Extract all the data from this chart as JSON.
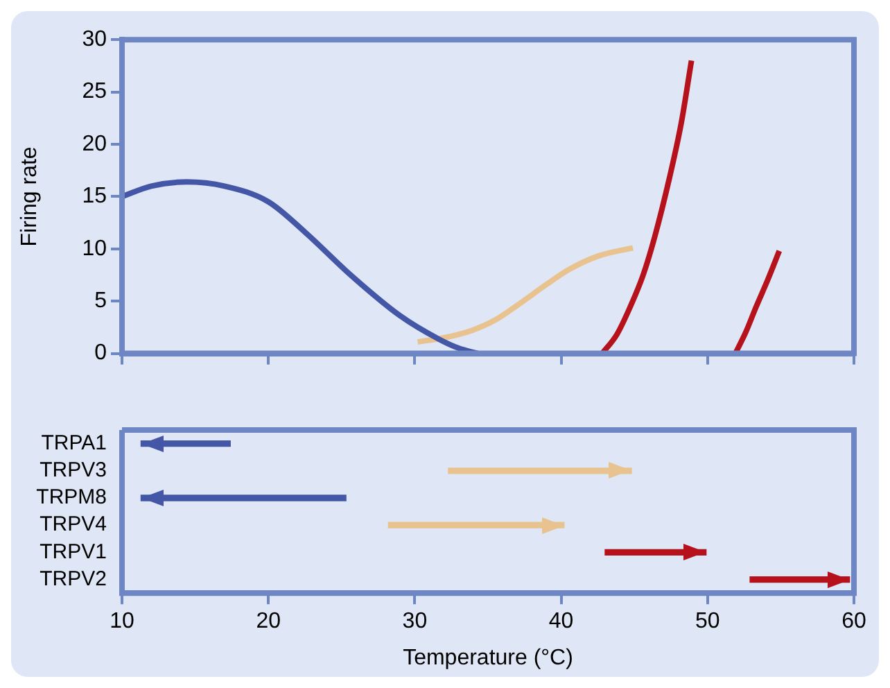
{
  "chart_data": [
    {
      "type": "line",
      "ylabel": "Firing rate",
      "xlim": [
        10,
        60
      ],
      "xticks": [
        {
          "value": 10,
          "label": null
        },
        {
          "value": 20,
          "label": null
        },
        {
          "value": 30,
          "label": null
        },
        {
          "value": 40,
          "label": null
        },
        {
          "value": 50,
          "label": null
        },
        {
          "value": 60,
          "label": null
        }
      ],
      "ylim": [
        0,
        30
      ],
      "yticks": [
        0,
        5,
        10,
        15,
        20,
        25,
        30
      ],
      "tick_labels": "y",
      "series": [
        {
          "color": "#4357a6",
          "x": [
            10,
            12,
            14.4,
            17,
            20,
            22.5,
            25.7,
            29,
            31.6,
            33,
            34.3
          ],
          "values": [
            15,
            16,
            16.4,
            16,
            14.5,
            11.6,
            7.4,
            3.6,
            1.4,
            0.5,
            0
          ]
        },
        {
          "color": "#e8c38f",
          "x": [
            30.2,
            32,
            33.9,
            35.5,
            37.2,
            39,
            40.5,
            42.5,
            44.9
          ],
          "values": [
            1.1,
            1.5,
            2.2,
            3.2,
            4.8,
            6.6,
            8,
            9.3,
            10.1
          ]
        },
        {
          "color": "#b5121b",
          "x": [
            42.8,
            43.8,
            44.7,
            45.6,
            46.4,
            47.4,
            48.2,
            48.9
          ],
          "values": [
            0,
            1.8,
            4.4,
            7.5,
            11.2,
            16.8,
            22,
            28
          ]
        },
        {
          "color": "#b5121b",
          "x": [
            51.9,
            52.6,
            53.3,
            54.1,
            54.9
          ],
          "values": [
            0,
            2,
            4.4,
            7,
            9.8
          ]
        }
      ]
    },
    {
      "type": "bar",
      "orientation": "horizontal",
      "xlabel": "Temperature (°C)",
      "categories": [
        "TRPA1",
        "TRPV3",
        "TRPM8",
        "TRPV4",
        "TRPV1",
        "TRPV2"
      ],
      "xlim": [
        10,
        60
      ],
      "xticks": [
        10,
        20,
        30,
        40,
        50,
        60
      ],
      "base": [
        17.4,
        32.3,
        25.3,
        28.2,
        43,
        52.9
      ],
      "values": [
        -6.1,
        12.5,
        -14,
        12,
        6.9,
        6.8
      ],
      "colors": [
        "#4357a6",
        "#e8c38f",
        "#4357a6",
        "#e8c38f",
        "#b5121b",
        "#b5121b"
      ]
    }
  ]
}
